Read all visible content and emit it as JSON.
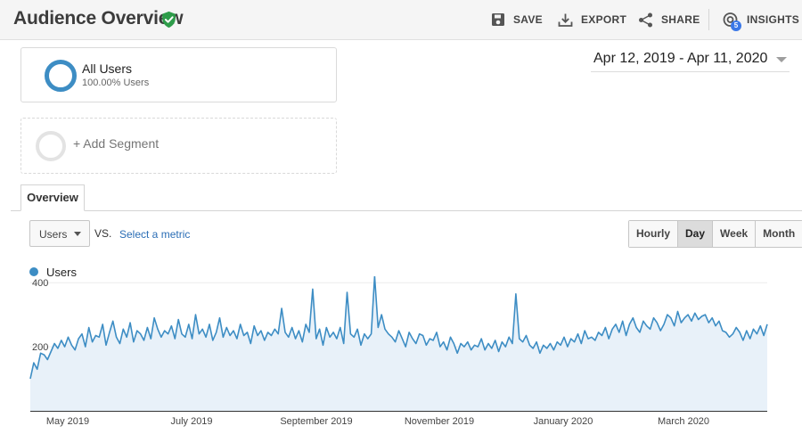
{
  "header": {
    "title": "Audience Overview",
    "actions": {
      "save": "SAVE",
      "export": "EXPORT",
      "share": "SHARE",
      "insights": "INSIGHTS",
      "insights_badge": "5"
    }
  },
  "segments": {
    "active": {
      "name": "All Users",
      "subtitle": "100.00% Users"
    },
    "add_label": "+ Add Segment"
  },
  "date_range": "Apr 12, 2019 - Apr 11, 2020",
  "tabs": {
    "overview": "Overview"
  },
  "controls": {
    "metric_dropdown": "Users",
    "vs_label": "VS.",
    "select_metric": "Select a metric",
    "granularity": [
      "Hourly",
      "Day",
      "Week",
      "Month"
    ],
    "granularity_selected": "Day"
  },
  "colors": {
    "series": "#3d8dc4",
    "fill": "#e8f1f9",
    "link": "#2a6db5",
    "verified": "#2e9c4a"
  },
  "icons": [
    "verified-shield-icon",
    "save-icon",
    "export-icon",
    "share-icon",
    "insights-icon",
    "dropdown-caret-icon"
  ],
  "chart_data": {
    "type": "area",
    "series": [
      {
        "name": "Users",
        "values": [
          100,
          150,
          130,
          180,
          175,
          160,
          185,
          210,
          195,
          220,
          200,
          230,
          205,
          190,
          225,
          240,
          200,
          260,
          215,
          235,
          230,
          270,
          205,
          245,
          280,
          230,
          210,
          255,
          230,
          275,
          215,
          250,
          240,
          220,
          260,
          225,
          290,
          255,
          230,
          250,
          240,
          265,
          225,
          285,
          240,
          230,
          270,
          225,
          300,
          240,
          255,
          230,
          270,
          220,
          245,
          290,
          230,
          260,
          235,
          250,
          225,
          270,
          235,
          245,
          210,
          265,
          235,
          250,
          220,
          245,
          235,
          255,
          240,
          320,
          245,
          230,
          260,
          225,
          250,
          215,
          270,
          245,
          380,
          225,
          255,
          205,
          260,
          230,
          245,
          225,
          260,
          210,
          370,
          240,
          230,
          255,
          205,
          240,
          225,
          240,
          420,
          260,
          300,
          255,
          240,
          230,
          215,
          250,
          225,
          200,
          245,
          225,
          210,
          240,
          235,
          205,
          225,
          220,
          245,
          200,
          215,
          190,
          230,
          210,
          180,
          210,
          200,
          215,
          190,
          205,
          200,
          225,
          190,
          210,
          195,
          220,
          185,
          215,
          200,
          230,
          210,
          365,
          225,
          215,
          235,
          205,
          195,
          215,
          180,
          205,
          195,
          210,
          190,
          215,
          205,
          230,
          200,
          225,
          215,
          240,
          210,
          250,
          225,
          230,
          220,
          245,
          235,
          260,
          225,
          255,
          270,
          245,
          280,
          235,
          270,
          290,
          260,
          245,
          280,
          265,
          255,
          290,
          275,
          250,
          270,
          300,
          290,
          265,
          310,
          275,
          290,
          300,
          280,
          305,
          285,
          295,
          300,
          275,
          290,
          265,
          280,
          250,
          245,
          230,
          240,
          260,
          245,
          220,
          250,
          225,
          255,
          240,
          265,
          235,
          270
        ]
      }
    ],
    "x_ticks": [
      "May 2019",
      "July 2019",
      "September 2019",
      "November 2019",
      "January 2020",
      "March 2020"
    ],
    "y_ticks": [
      "400",
      "200"
    ],
    "ylim": [
      0,
      420
    ],
    "legend": "top-left",
    "grid": true
  }
}
